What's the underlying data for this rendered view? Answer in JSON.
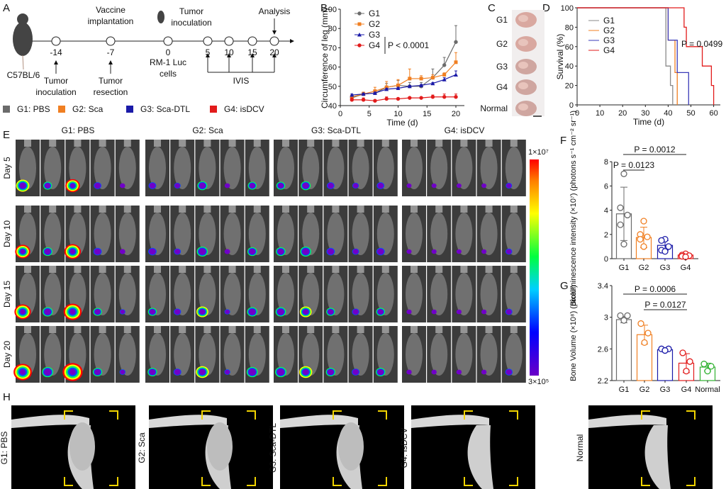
{
  "panel_labels": [
    "A",
    "B",
    "C",
    "D",
    "E",
    "F",
    "G",
    "H"
  ],
  "timeline": {
    "strain": "C57BL/6",
    "points": [
      {
        "day": "-14",
        "below": [
          "Tumor",
          "inoculation"
        ]
      },
      {
        "day": "-7",
        "below": [
          "Tumor",
          "resection"
        ],
        "above": [
          "Vaccine",
          "implantation"
        ]
      },
      {
        "day": "0",
        "below": [
          "RM-1 Luc",
          "cells"
        ],
        "above": [
          "Tumor",
          "inoculation"
        ]
      },
      {
        "day": "5"
      },
      {
        "day": "10"
      },
      {
        "day": "15"
      },
      {
        "day": "20",
        "above": [
          "Analysis"
        ]
      }
    ],
    "ivis_label": "IVIS"
  },
  "groups_legend": [
    {
      "label": "G1: PBS",
      "color": "#6b6b6b"
    },
    {
      "label": "G2: Sca",
      "color": "#f07f22"
    },
    {
      "label": "G3: Sca-DTL",
      "color": "#1a1aa8"
    },
    {
      "label": "G4: isDCV",
      "color": "#e21b1b"
    }
  ],
  "photo_panel": {
    "labels": [
      "G1",
      "G2",
      "G3",
      "G4",
      "Normal"
    ]
  },
  "ivis_panel": {
    "group_titles": [
      "G1: PBS",
      "G2: Sca",
      "G3: Sca-DTL",
      "G4: isDCV"
    ],
    "day_labels": [
      "Day 5",
      "Day 10",
      "Day 15",
      "Day 20"
    ],
    "colorbar": {
      "max_label": "1×10⁷",
      "min_label": "3×10⁵"
    }
  },
  "ct_panel": {
    "labels": [
      "G1: PBS",
      "G2: Sca",
      "G3: Sca-DTL",
      "G4: isDCV",
      "Normal"
    ]
  },
  "chart_data": [
    {
      "id": "B",
      "type": "line",
      "xlabel": "Time (d)",
      "ylabel": "Circumference of leg (mm)",
      "xlim": [
        0,
        20
      ],
      "ylim": [
        40,
        90
      ],
      "xticks": [
        0,
        5,
        10,
        15,
        20
      ],
      "yticks": [
        40,
        50,
        60,
        70,
        80,
        90
      ],
      "x": [
        2,
        4,
        6,
        8,
        10,
        12,
        14,
        16,
        18,
        20
      ],
      "annotation": "P < 0.0001",
      "series": [
        {
          "name": "G1",
          "color": "#6b6b6b",
          "marker": "circle",
          "values": [
            44,
            46,
            46.5,
            49.5,
            50.5,
            50,
            50,
            54.5,
            61,
            73
          ],
          "err": [
            1,
            1,
            1,
            2,
            2.5,
            2,
            2,
            4.5,
            4,
            8.5
          ]
        },
        {
          "name": "G2",
          "color": "#f07f22",
          "marker": "square",
          "values": [
            44.5,
            46,
            47.5,
            49.5,
            50.5,
            54,
            54,
            54.5,
            56,
            62.5
          ],
          "err": [
            1,
            1,
            2,
            3,
            3,
            5,
            1.5,
            1.5,
            1,
            5
          ]
        },
        {
          "name": "G3",
          "color": "#1a1aa8",
          "marker": "triangle",
          "values": [
            45.5,
            46,
            46.5,
            48.5,
            49,
            50,
            50.5,
            51.5,
            53.5,
            56
          ],
          "err": [
            0.5,
            0.5,
            0.5,
            0.5,
            0.5,
            0.5,
            0.5,
            0.5,
            1,
            2
          ]
        },
        {
          "name": "G4",
          "color": "#e21b1b",
          "marker": "circle",
          "values": [
            43,
            43,
            42.5,
            43.5,
            43.5,
            44,
            44,
            44.5,
            44.5,
            44.5
          ],
          "err": [
            1,
            1,
            0.5,
            1,
            0.5,
            0.5,
            0.5,
            1,
            1.5,
            1.5
          ]
        }
      ]
    },
    {
      "id": "D",
      "type": "line",
      "xlabel": "Time (d)",
      "ylabel": "Survival (%)",
      "xlim": [
        0,
        65
      ],
      "ylim": [
        0,
        100
      ],
      "xticks": [
        0,
        10,
        20,
        30,
        40,
        50,
        60
      ],
      "yticks": [
        0,
        20,
        40,
        60,
        80,
        100
      ],
      "annotation": "P = 0.0499",
      "series": [
        {
          "name": "G1",
          "color": "#8a8a8a",
          "time": [
            0,
            39,
            41,
            42
          ],
          "survival": [
            100,
            40,
            20,
            0
          ]
        },
        {
          "name": "G2",
          "color": "#f07f22",
          "time": [
            0,
            40,
            43,
            44
          ],
          "survival": [
            100,
            66.7,
            33.3,
            0
          ]
        },
        {
          "name": "G3",
          "color": "#3a3ab8",
          "time": [
            0,
            40,
            44,
            49
          ],
          "survival": [
            100,
            66.7,
            33.3,
            0
          ]
        },
        {
          "name": "G4",
          "color": "#e21b1b",
          "time": [
            0,
            47,
            48,
            55,
            59,
            60
          ],
          "survival": [
            100,
            80,
            60,
            40,
            20,
            0
          ]
        }
      ]
    },
    {
      "id": "F",
      "type": "bar",
      "ylabel": "Bioluminescence intensity (×10⁷) (photons s⁻¹ cm⁻² sr⁻¹)",
      "ylim": [
        0,
        8
      ],
      "yticks": [
        0,
        2,
        4,
        6,
        8
      ],
      "categories": [
        "G1",
        "G2",
        "G3",
        "G4"
      ],
      "colors": [
        "#6b6b6b",
        "#f07f22",
        "#1a1aa8",
        "#e21b1b"
      ],
      "values": [
        3.7,
        1.75,
        1.1,
        0.3
      ],
      "sd": [
        2.2,
        0.85,
        0.4,
        0.1
      ],
      "points": [
        [
          7,
          4.2,
          3.6,
          2.8,
          1.2
        ],
        [
          3.1,
          2,
          1.8,
          1.6,
          1.0
        ],
        [
          1.6,
          1.5,
          1.0,
          0.7,
          0.6
        ],
        [
          0.4,
          0.3,
          0.25,
          0.2,
          0.15
        ]
      ],
      "comparisons": [
        {
          "from": "G1",
          "to": "G4",
          "label": "P = 0.0012"
        },
        {
          "from": "G1",
          "to": "G2",
          "label": "P = 0.0123"
        }
      ]
    },
    {
      "id": "G",
      "type": "bar",
      "ylabel": "Bone Volume (×10⁸) (pixel³)",
      "ylim": [
        2.2,
        3.4
      ],
      "yticks": [
        2.2,
        2.6,
        3,
        3.4
      ],
      "categories": [
        "G1",
        "G2",
        "G3",
        "G4",
        "Normal"
      ],
      "colors": [
        "#6b6b6b",
        "#f07f22",
        "#1a1aa8",
        "#e21b1b",
        "#2fb12f"
      ],
      "values": [
        2.97,
        2.78,
        2.59,
        2.42,
        2.37
      ],
      "sd": [
        0.04,
        0.12,
        0.02,
        0.12,
        0.05
      ],
      "points": [
        [
          3.02,
          3.02,
          2.96
        ],
        [
          2.92,
          2.8,
          2.68
        ],
        [
          2.6,
          2.6,
          2.58
        ],
        [
          2.55,
          2.44,
          2.32
        ],
        [
          2.41,
          2.38,
          2.32
        ]
      ],
      "comparisons": [
        {
          "from": "G1",
          "to": "G4",
          "label": "P = 0.0006"
        },
        {
          "from": "G2",
          "to": "G4",
          "label": "P = 0.0127"
        }
      ]
    }
  ]
}
